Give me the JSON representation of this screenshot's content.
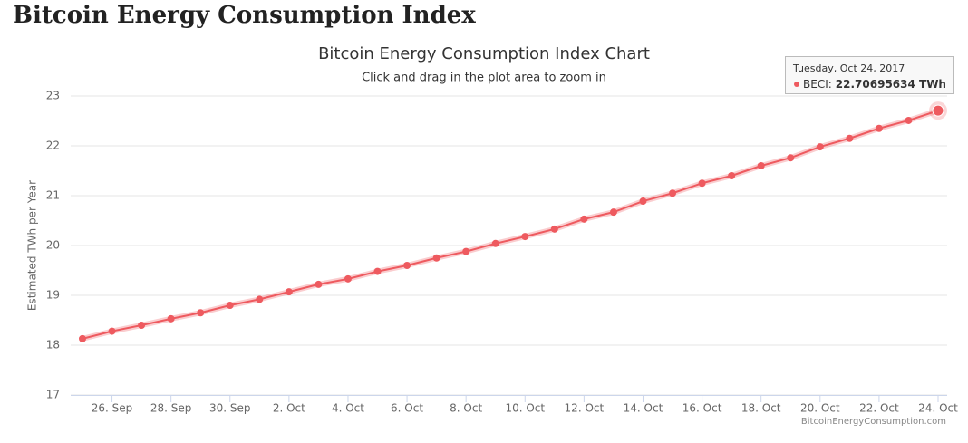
{
  "header": {
    "title": "Bitcoin Energy Consumption Index"
  },
  "chart_data": {
    "type": "line",
    "title": "Bitcoin Energy Consumption Index Chart",
    "subtitle": "Click and drag in the plot area to zoom in",
    "y_label": "Estimated TWh per Year",
    "credit": "BitcoinEnergyConsumption.com",
    "categories": [
      null,
      "26. Sep",
      null,
      "28. Sep",
      null,
      "30. Sep",
      null,
      "2. Oct",
      null,
      "4. Oct",
      null,
      "6. Oct",
      null,
      "8. Oct",
      null,
      "10. Oct",
      null,
      "12. Oct",
      null,
      "14. Oct",
      null,
      "16. Oct",
      null,
      "18. Oct",
      null,
      "20. Oct",
      null,
      "22. Oct",
      null,
      "24. Oct"
    ],
    "series": [
      {
        "color": "#ee5a5f",
        "values": [
          18.13,
          18.28,
          18.4,
          18.53,
          18.65,
          18.8,
          18.92,
          19.07,
          19.22,
          19.33,
          19.48,
          19.6,
          19.75,
          19.88,
          20.04,
          20.18,
          20.33,
          20.53,
          20.67,
          20.89,
          21.05,
          21.25,
          21.4,
          21.6,
          21.76,
          21.98,
          22.15,
          22.35,
          22.51,
          22.70695634
        ],
        "value_labels": [
          null,
          null,
          null,
          null,
          null,
          null,
          null,
          null,
          null,
          null,
          null,
          null,
          null,
          null,
          null,
          null,
          null,
          null,
          null,
          null,
          null,
          null,
          null,
          null,
          null,
          null,
          null,
          null,
          null,
          "22.70695634 TWh"
        ]
      }
    ],
    "tooltip": {
      "title": "Tuesday, Oct 24, 2017",
      "series_label": "BECI:"
    },
    "ylim": [
      17,
      23
    ],
    "yticks": [
      17,
      18,
      19,
      20,
      21,
      22,
      23
    ],
    "grid": true
  }
}
